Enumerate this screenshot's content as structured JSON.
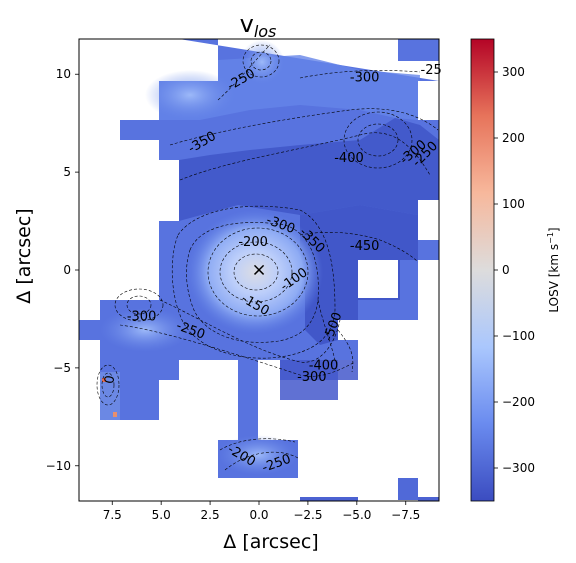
{
  "chart_data": {
    "type": "heatmap",
    "title_main": "v",
    "title_sub": "los",
    "xlabel": "Δ [arcsec]",
    "ylabel": "Δ [arcsec]",
    "xlim": [
      9.2,
      -9.2
    ],
    "ylim": [
      -11.8,
      11.8
    ],
    "x_ticks": [
      7.5,
      5.0,
      2.5,
      0.0,
      -2.5,
      -5.0,
      -7.5
    ],
    "x_tick_labels": [
      "7.5",
      "5.0",
      "2.5",
      "0.0",
      "−2.5",
      "−5.0",
      "−7.5"
    ],
    "y_ticks": [
      10,
      5,
      0,
      -5,
      -10
    ],
    "y_tick_labels": [
      "10",
      "5",
      "0",
      "−5",
      "−10"
    ],
    "colorbar": {
      "label_main": "LOSV [km s",
      "label_sup": "−1",
      "label_end": "]",
      "range": [
        -350,
        350
      ],
      "ticks": [
        300,
        200,
        100,
        0,
        -100,
        -200,
        -300
      ],
      "tick_labels": [
        "300",
        "200",
        "100",
        "0",
        "−100",
        "−200",
        "−300"
      ],
      "colors": [
        "#3b4cc0",
        "#6a8bef",
        "#aac7fd",
        "#dddcdc",
        "#f7b89c",
        "#e7745b",
        "#b40426"
      ]
    },
    "center_marker": {
      "x": 0.0,
      "y": 0.0,
      "symbol": "×"
    },
    "contour_labels": [
      {
        "text": "-250",
        "x": 0.9,
        "y": 9.7,
        "rot": -30
      },
      {
        "text": "-300",
        "x": -5.4,
        "y": 9.8,
        "rot": 0
      },
      {
        "text": "-25",
        "x": -8.8,
        "y": 10.2,
        "rot": 0
      },
      {
        "text": "-350",
        "x": 2.9,
        "y": 6.5,
        "rot": -30
      },
      {
        "text": "-400",
        "x": -4.6,
        "y": 5.7,
        "rot": 0
      },
      {
        "text": "-300",
        "x": -7.9,
        "y": 6.0,
        "rot": -40
      },
      {
        "text": "-250",
        "x": -8.5,
        "y": 5.9,
        "rot": -45
      },
      {
        "text": "-300",
        "x": -1.1,
        "y": 2.3,
        "rot": 20
      },
      {
        "text": "-350",
        "x": -2.7,
        "y": 1.5,
        "rot": 45
      },
      {
        "text": "-200",
        "x": 0.3,
        "y": 1.4,
        "rot": 0
      },
      {
        "text": "-450",
        "x": -5.4,
        "y": 1.2,
        "rot": 0
      },
      {
        "text": "-100",
        "x": -1.8,
        "y": -0.5,
        "rot": -35
      },
      {
        "text": "-150",
        "x": 0.2,
        "y": -1.8,
        "rot": 30
      },
      {
        "text": "-300",
        "x": 6.0,
        "y": -2.4,
        "rot": 0
      },
      {
        "text": "-250",
        "x": 3.5,
        "y": -3.1,
        "rot": 20
      },
      {
        "text": "-500",
        "x": -3.8,
        "y": -2.9,
        "rot": -70
      },
      {
        "text": "-400",
        "x": -3.3,
        "y": -4.9,
        "rot": 0
      },
      {
        "text": "-300",
        "x": -2.7,
        "y": -5.5,
        "rot": 0
      },
      {
        "text": "0",
        "x": 7.6,
        "y": -5.6,
        "rot": -80
      },
      {
        "text": "-200",
        "x": 0.9,
        "y": -9.5,
        "rot": 30
      },
      {
        "text": "-250",
        "x": -0.9,
        "y": -9.9,
        "rot": -20
      }
    ]
  }
}
